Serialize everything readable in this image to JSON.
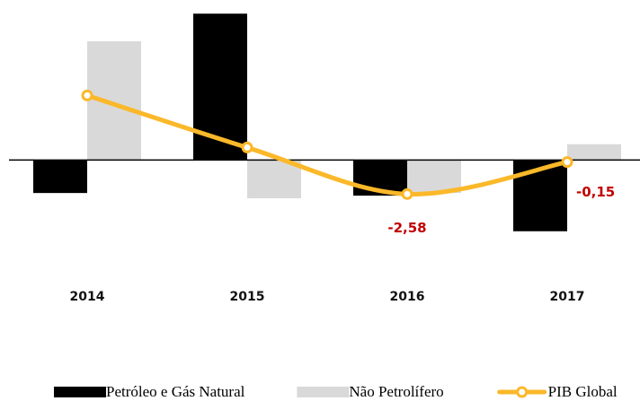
{
  "chart_data": {
    "type": "bar-line",
    "categories": [
      "2014",
      "2015",
      "2016",
      "2017"
    ],
    "series": [
      {
        "name": "Petróleo e Gás Natural",
        "type": "bar",
        "color": "#000000",
        "values": [
          -2.5,
          11.1,
          -2.7,
          -5.4
        ]
      },
      {
        "name": "Não Petrolífero",
        "type": "bar",
        "color": "#d9d9d9",
        "values": [
          9.0,
          -2.9,
          -2.5,
          1.2
        ]
      },
      {
        "name": "PIB Global",
        "type": "line",
        "color": "#fbb829",
        "values": [
          4.9,
          0.95,
          -2.58,
          -0.15
        ],
        "value_labels": [
          null,
          null,
          "-2,58",
          "-0,15"
        ],
        "label_color": "#c00000"
      }
    ],
    "ylim": [
      -8,
      12
    ],
    "legend": "bottom"
  }
}
